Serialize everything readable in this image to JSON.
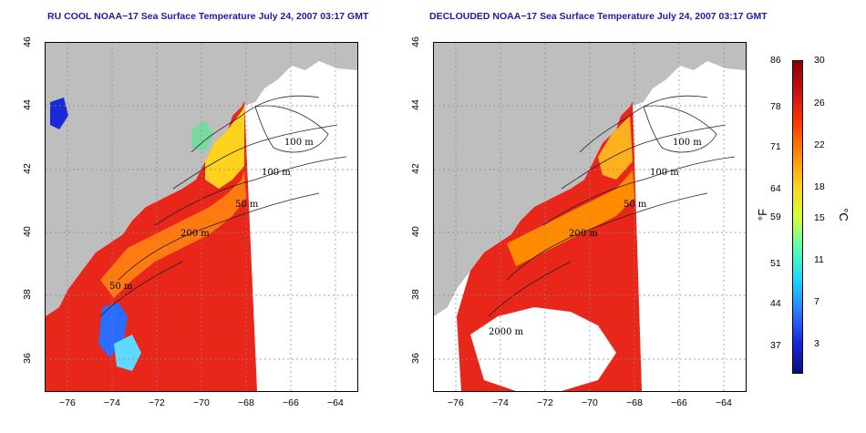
{
  "left_panel": {
    "title": "RU COOL NOAA−17 Sea Surface Temperature July 24, 2007 03:17 GMT",
    "depth_labels": [
      "100 m",
      "100 m",
      "50 m",
      "200 m",
      "50 m"
    ]
  },
  "right_panel": {
    "title": "DECLOUDED NOAA−17 Sea Surface Temperature July 24, 2007 03:17 GMT",
    "depth_labels": [
      "100 m",
      "100 m",
      "50 m",
      "200 m",
      "2000 m"
    ]
  },
  "x_ticks": [
    "−76",
    "−74",
    "−72",
    "−70",
    "−68",
    "−66",
    "−64"
  ],
  "y_ticks": [
    "46",
    "44",
    "42",
    "40",
    "38",
    "36"
  ],
  "colorbar": {
    "fahrenheit_label": "°F",
    "celsius_label": "°C",
    "fahrenheit_ticks": [
      "86",
      "78",
      "71",
      "64",
      "59",
      "51",
      "44",
      "37"
    ],
    "celsius_ticks": [
      "30",
      "26",
      "22",
      "18",
      "15",
      "11",
      "7",
      "3"
    ],
    "colors": [
      "#8b0000",
      "#cc1010",
      "#ff3a00",
      "#ff8c00",
      "#ffd21e",
      "#d8ff3a",
      "#5affb0",
      "#16d9ff",
      "#2a7dff",
      "#1a2ad9",
      "#0a0a80"
    ]
  },
  "colors": {
    "land": "#bebebe",
    "title": "#1a1ab0"
  }
}
